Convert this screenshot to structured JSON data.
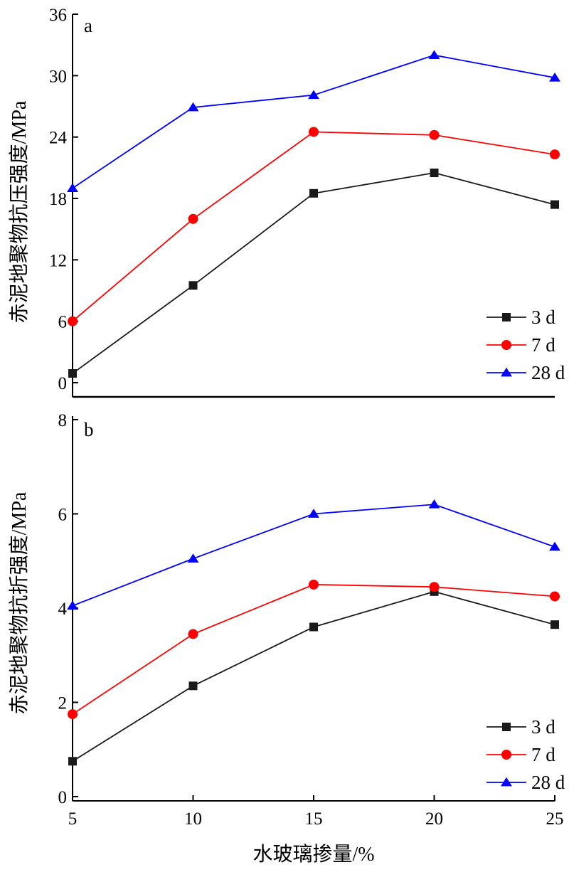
{
  "colors": {
    "3 d": "#1a1a1a",
    "7 d": "#ff0000",
    "28 d": "#0000ff"
  },
  "x_axis_label": "水玻璃掺量/%",
  "chart_data": [
    {
      "type": "line",
      "panel_label": "a",
      "xlabel": "水玻璃掺量/%",
      "ylabel": "赤泥地聚物抗压强度/MPa",
      "x": [
        5,
        10,
        15,
        20,
        25
      ],
      "xlim": [
        5,
        25
      ],
      "ylim": [
        0,
        36
      ],
      "yticks": [
        0,
        6,
        12,
        18,
        24,
        30,
        36
      ],
      "legend_position": "bottom-right",
      "grid": false,
      "series": [
        {
          "name": "3 d",
          "marker": "square",
          "color": "#1a1a1a",
          "values": [
            0.9,
            9.5,
            18.5,
            20.5,
            17.4
          ]
        },
        {
          "name": "7 d",
          "marker": "circle",
          "color": "#ff0000",
          "values": [
            6.0,
            16.0,
            24.5,
            24.2,
            22.3
          ]
        },
        {
          "name": "28 d",
          "marker": "triangle",
          "color": "#0000ff",
          "values": [
            19.0,
            26.9,
            28.1,
            32.0,
            29.8
          ]
        }
      ]
    },
    {
      "type": "line",
      "panel_label": "b",
      "xlabel": "水玻璃掺量/%",
      "ylabel": "赤泥地聚物抗折强度/MPa",
      "x": [
        5,
        10,
        15,
        20,
        25
      ],
      "xlim": [
        5,
        25
      ],
      "ylim": [
        0,
        8
      ],
      "yticks": [
        0,
        2,
        4,
        6,
        8
      ],
      "xticks": [
        5,
        10,
        15,
        20,
        25
      ],
      "legend_position": "bottom-right",
      "grid": false,
      "series": [
        {
          "name": "3 d",
          "marker": "square",
          "color": "#1a1a1a",
          "values": [
            0.75,
            2.35,
            3.6,
            4.35,
            3.65
          ]
        },
        {
          "name": "7 d",
          "marker": "circle",
          "color": "#ff0000",
          "values": [
            1.75,
            3.45,
            4.5,
            4.45,
            4.25
          ]
        },
        {
          "name": "28 d",
          "marker": "triangle",
          "color": "#0000ff",
          "values": [
            4.05,
            5.05,
            6.0,
            6.2,
            5.3
          ]
        }
      ]
    }
  ]
}
